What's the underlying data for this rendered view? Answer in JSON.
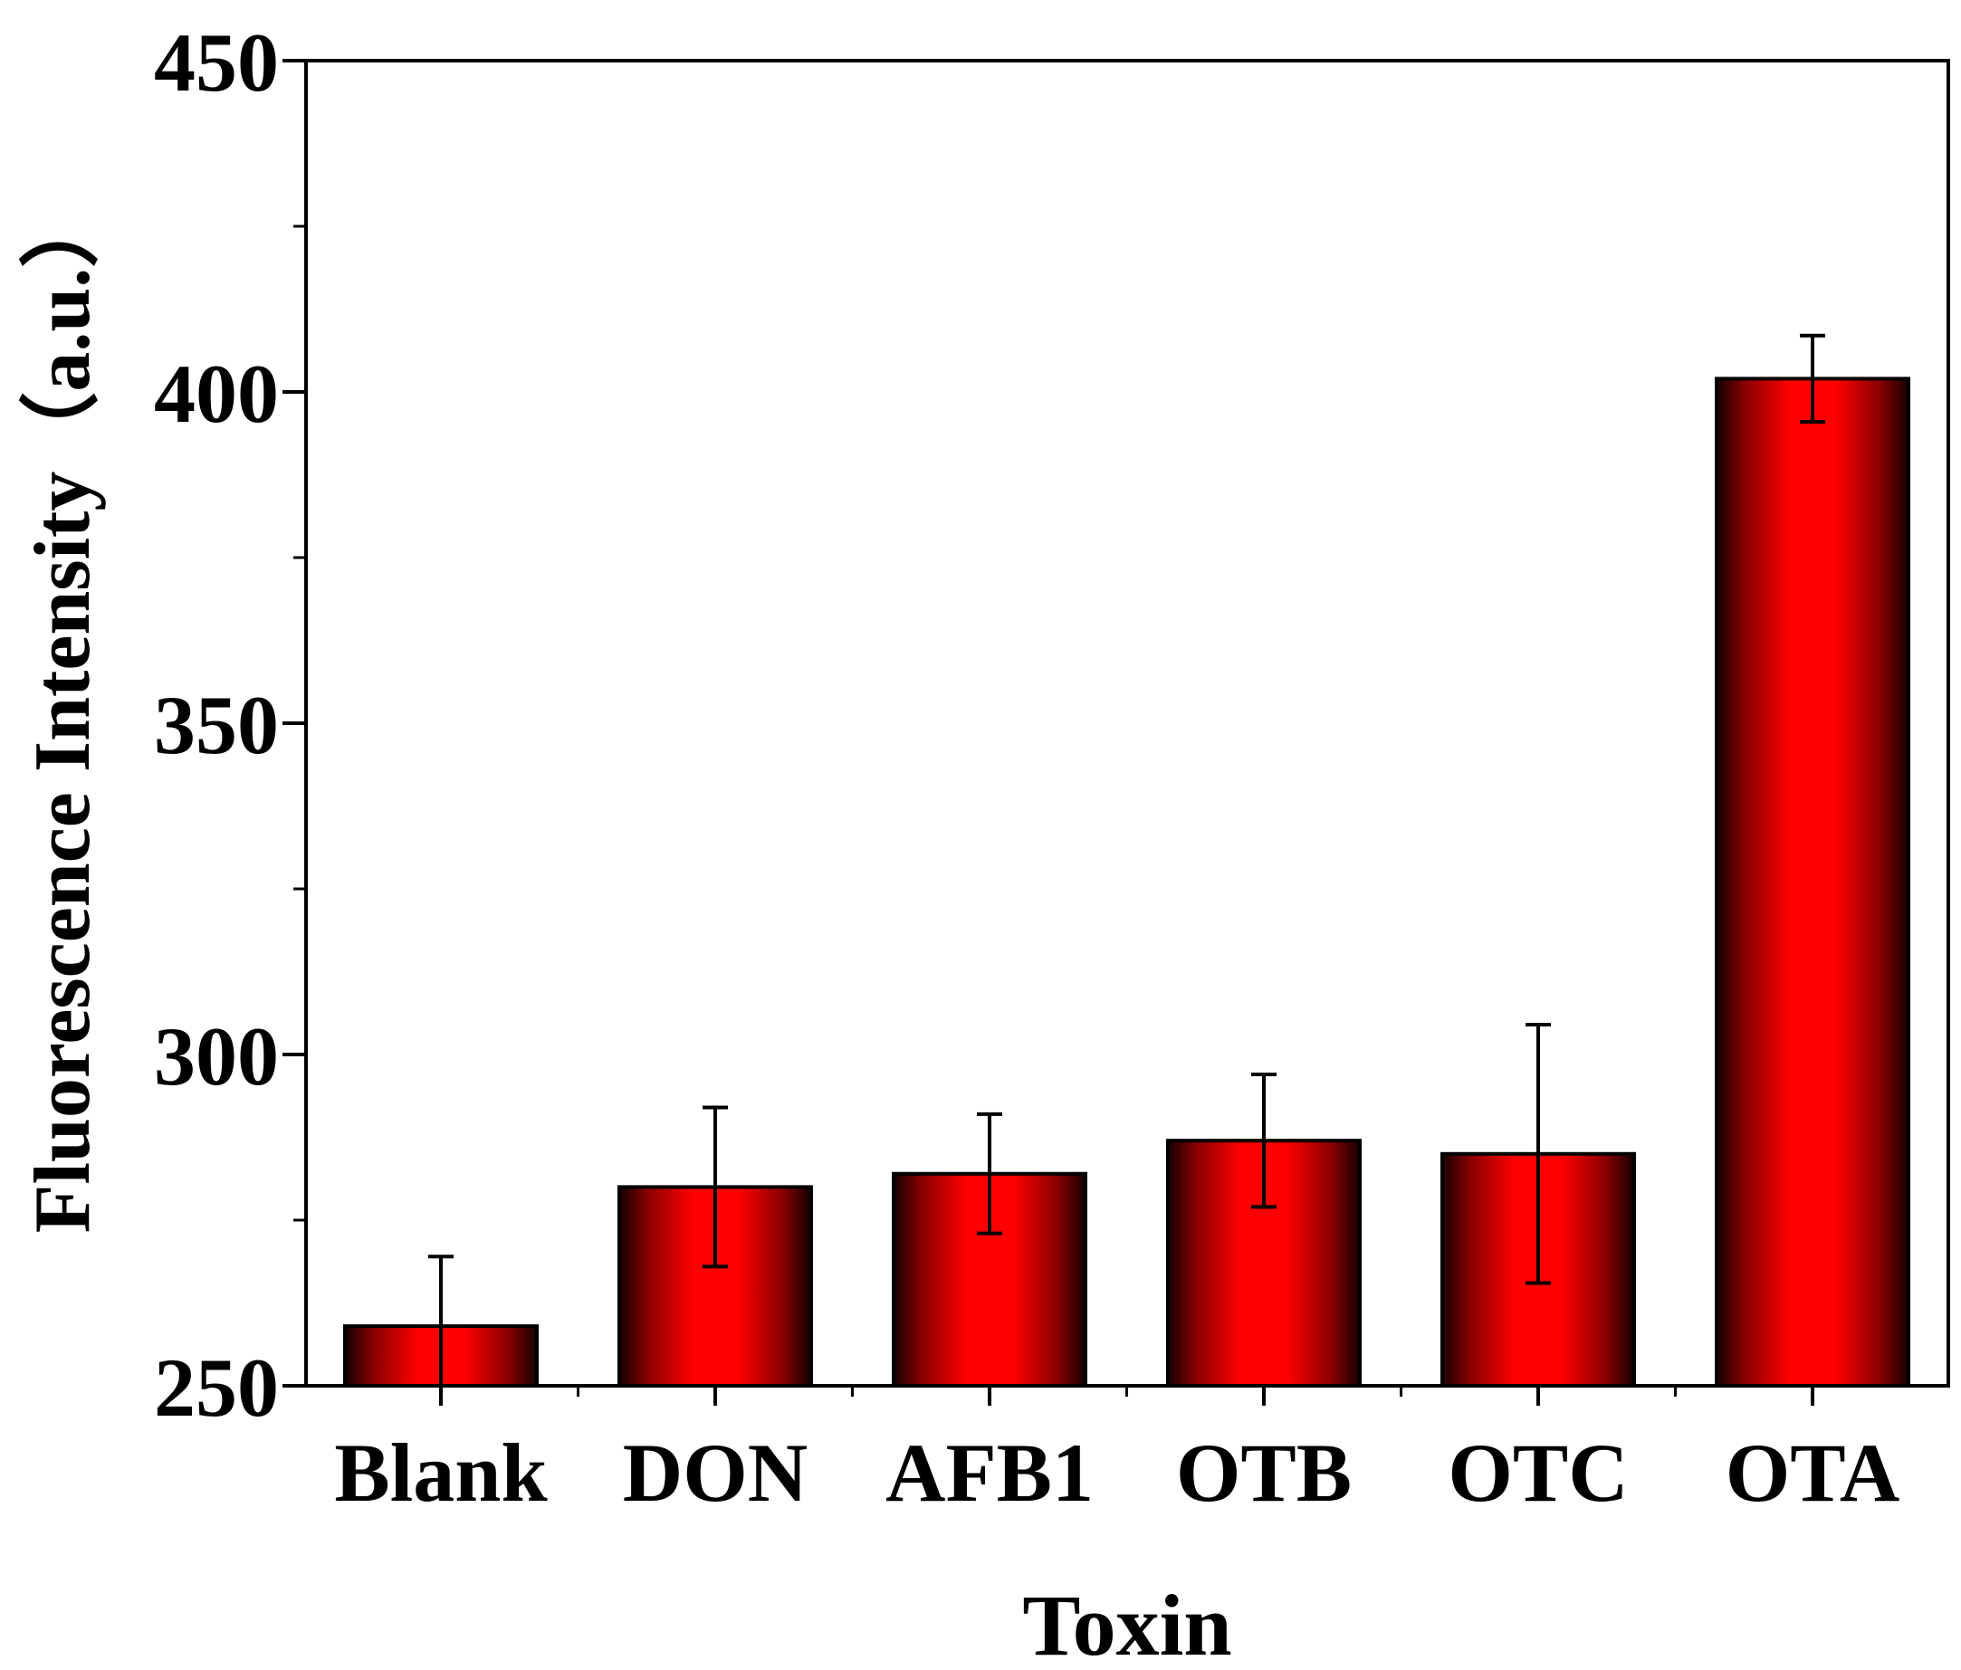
{
  "chart_data": {
    "type": "bar",
    "categories": [
      "Blank",
      "DON",
      "AFB1",
      "OTB",
      "OTC",
      "OTA"
    ],
    "values": [
      259,
      280,
      282,
      287,
      285,
      402
    ],
    "errors": [
      10.5,
      12,
      9,
      10,
      19.5,
      6.5
    ],
    "xlabel": "Toxin",
    "ylabel": "Fluorescence Intensity（a.u.）",
    "ylim": [
      250,
      450
    ],
    "yticks": [
      "250",
      "300",
      "350",
      "400",
      "450"
    ],
    "grid": false,
    "legend": "none",
    "bar_color": "#ff0000",
    "bar_edge_color": "#000000"
  }
}
